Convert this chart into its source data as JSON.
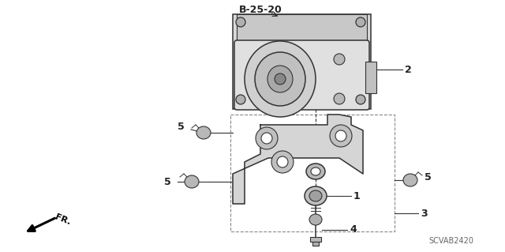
{
  "bg_color": "#ffffff",
  "line_color": "#333333",
  "label_color": "#222222",
  "title_ref": "B-25-20",
  "diagram_code": "SCVAB2420"
}
